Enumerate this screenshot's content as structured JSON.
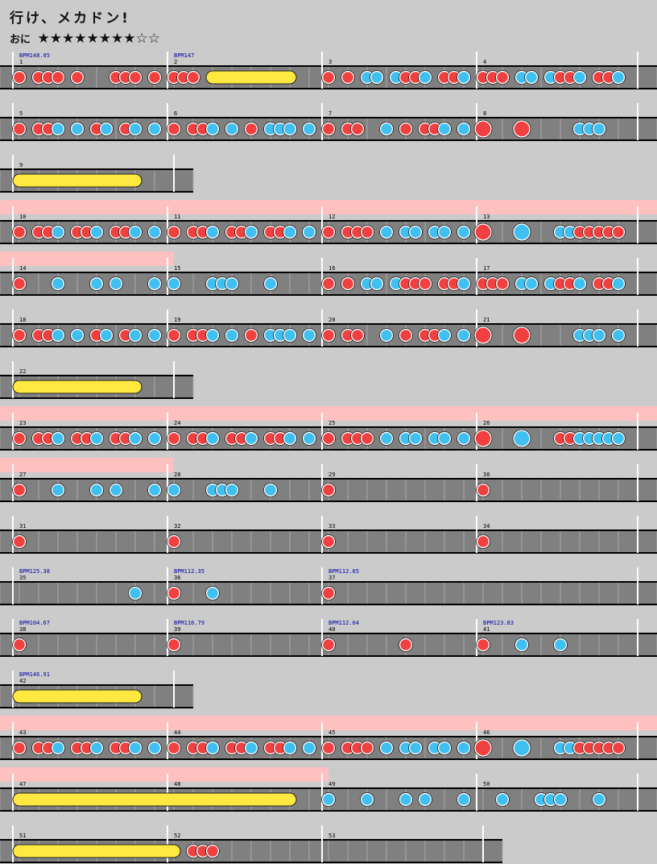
{
  "song": {
    "title": "行け、メカドン!",
    "difficulty": "おに",
    "stars": "★★★★★★★★☆☆"
  },
  "chart_data": {
    "type": "taiko-score",
    "colors": {
      "background": "#cbcbcb",
      "lane": "#808080",
      "gogo": "#ffc0c0",
      "don": "#f0403f",
      "ka": "#40c0f0",
      "roll": "#ffe840",
      "bpm_text": "#0000aa"
    },
    "rows": [
      {
        "gogo_measures": 0,
        "measures": [
          {
            "label": "1",
            "bpm": "BPM148.05",
            "notes": [
              [
                0,
                "d"
              ],
              [
                2,
                "d"
              ],
              [
                3,
                "d"
              ],
              [
                4,
                "d"
              ],
              [
                7,
                "d"
              ]
            ]
          },
          {
            "label": "2",
            "bpm": "BPM147",
            "notes": [
              [
                0,
                "d"
              ],
              [
                1,
                "d"
              ],
              [
                2,
                "d"
              ],
              [
                0,
                "d"
              ],
              [
                0,
                "d"
              ]
            ],
            "custom": "m2"
          },
          {
            "label": "3",
            "notes": [],
            "custom": "m3"
          },
          {
            "label": "4",
            "notes": [],
            "custom": "m4"
          }
        ]
      },
      {
        "measures": [
          {
            "label": "5",
            "custom": "m5"
          },
          {
            "label": "6",
            "custom": "m6"
          },
          {
            "label": "7",
            "custom": "m7"
          },
          {
            "label": "8",
            "custom": "m8"
          }
        ]
      },
      {
        "measures": [
          {
            "label": "9",
            "custom": "m9"
          }
        ]
      },
      {
        "gogo": true,
        "measures": [
          {
            "label": "10",
            "custom": "m10"
          },
          {
            "label": "11",
            "custom": "m11"
          },
          {
            "label": "12",
            "custom": "m12"
          },
          {
            "label": "13",
            "custom": "m13"
          }
        ]
      },
      {
        "gogo_first": true,
        "measures": [
          {
            "label": "14",
            "custom": "m14"
          },
          {
            "label": "15",
            "custom": "m15"
          },
          {
            "label": "16",
            "custom": "m16"
          },
          {
            "label": "17",
            "custom": "m17"
          }
        ]
      },
      {
        "measures": [
          {
            "label": "18",
            "custom": "m5"
          },
          {
            "label": "19",
            "custom": "m6"
          },
          {
            "label": "20",
            "custom": "m7"
          },
          {
            "label": "21",
            "custom": "m21"
          }
        ]
      },
      {
        "measures": [
          {
            "label": "22",
            "custom": "m9"
          }
        ]
      },
      {
        "gogo": true,
        "measures": [
          {
            "label": "23",
            "custom": "m10"
          },
          {
            "label": "24",
            "custom": "m11"
          },
          {
            "label": "25",
            "custom": "m12"
          },
          {
            "label": "26",
            "custom": "m26"
          }
        ]
      },
      {
        "gogo_first": true,
        "measures": [
          {
            "label": "27",
            "custom": "m14"
          },
          {
            "label": "28",
            "custom": "m28"
          },
          {
            "label": "29",
            "custom": "single"
          },
          {
            "label": "30",
            "custom": "single"
          }
        ]
      },
      {
        "measures": [
          {
            "label": "31",
            "custom": "single"
          },
          {
            "label": "32",
            "custom": "single"
          },
          {
            "label": "33",
            "custom": "single"
          },
          {
            "label": "34",
            "custom": "single"
          }
        ]
      },
      {
        "measures": [
          {
            "label": "35",
            "bpm": "BPM125.38",
            "custom": "m35"
          },
          {
            "label": "36",
            "bpm": "BPM112.35",
            "custom": "single"
          },
          {
            "label": "37",
            "bpm": "BPM112.65",
            "custom": "single"
          }
        ]
      },
      {
        "measures": [
          {
            "label": "38",
            "bpm": "BPM104.67",
            "custom": "single"
          },
          {
            "label": "39",
            "bpm": "BPM116.79",
            "custom": "single"
          },
          {
            "label": "40",
            "bpm": "BPM112.04",
            "custom": "m40"
          },
          {
            "label": "41",
            "bpm": "BPM123.83",
            "custom": "m41"
          }
        ]
      },
      {
        "measures": [
          {
            "label": "42",
            "bpm": "BPM146.91",
            "custom": "m9"
          }
        ]
      },
      {
        "gogo": true,
        "measures": [
          {
            "label": "43",
            "custom": "m10"
          },
          {
            "label": "44",
            "custom": "m11"
          },
          {
            "label": "45",
            "custom": "m12"
          },
          {
            "label": "46",
            "custom": "m13"
          }
        ]
      },
      {
        "gogo_two": true,
        "measures": [
          {
            "label": "47",
            "custom": "m47"
          },
          {
            "label": "48",
            "custom": "none"
          },
          {
            "label": "49",
            "custom": "m49"
          },
          {
            "label": "50",
            "custom": "m50"
          }
        ]
      },
      {
        "measures": [
          {
            "label": "51",
            "custom": "m51"
          },
          {
            "label": "52",
            "custom": "m52"
          },
          {
            "label": "53",
            "custom": "none"
          }
        ]
      }
    ]
  }
}
